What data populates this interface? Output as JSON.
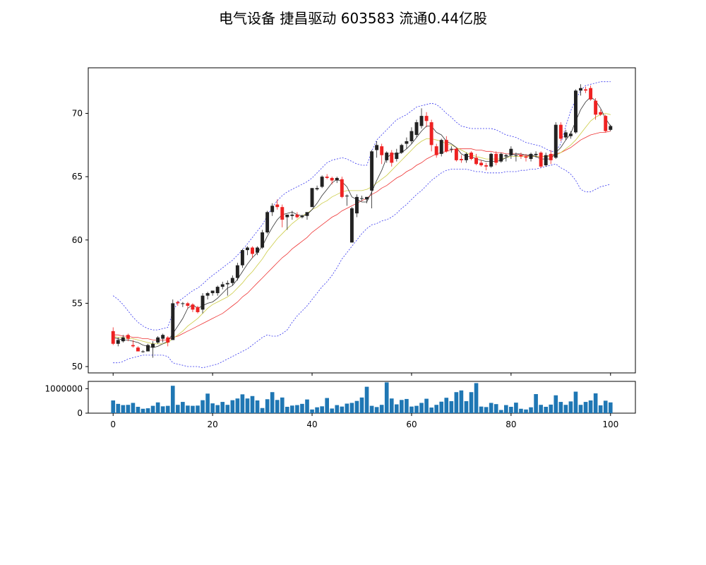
{
  "chart_data": {
    "type": "candlestick",
    "title": "电气设备 捷昌驱动 603583 流通0.44亿股",
    "price_panel": {
      "yticks": [
        50,
        55,
        60,
        65,
        70
      ],
      "ylim": [
        49.5,
        73.6
      ],
      "xlim": [
        -5,
        105
      ],
      "colors": {
        "up": "#222222",
        "down": "#ee2222",
        "ma_short": "#333333",
        "ma_mid": "#cccc44",
        "ma_long": "#ee3333",
        "boll": "#3333ee"
      },
      "candles": [
        [
          52.8,
          53.1,
          51.7,
          51.8
        ],
        [
          51.8,
          52.3,
          51.6,
          52.1
        ],
        [
          52.0,
          52.5,
          51.9,
          52.3
        ],
        [
          52.5,
          52.6,
          52.0,
          52.2
        ],
        [
          51.7,
          52.1,
          51.5,
          51.6
        ],
        [
          51.5,
          51.6,
          51.2,
          51.2
        ],
        [
          51.2,
          51.3,
          51.1,
          51.2
        ],
        [
          51.2,
          51.8,
          51.2,
          51.7
        ],
        [
          51.5,
          52.0,
          50.7,
          51.8
        ],
        [
          51.9,
          52.4,
          51.8,
          52.3
        ],
        [
          52.2,
          52.6,
          51.9,
          52.5
        ],
        [
          52.3,
          52.4,
          51.6,
          51.9
        ],
        [
          52.1,
          55.3,
          52.1,
          55.0
        ],
        [
          55.1,
          55.2,
          54.8,
          55.0
        ],
        [
          55.0,
          55.1,
          54.7,
          55.0
        ],
        [
          55.0,
          55.1,
          54.6,
          54.8
        ],
        [
          54.9,
          55.0,
          54.3,
          54.5
        ],
        [
          54.7,
          54.8,
          54.2,
          54.3
        ],
        [
          54.5,
          55.8,
          54.2,
          55.6
        ],
        [
          55.6,
          55.9,
          55.3,
          55.8
        ],
        [
          55.8,
          56.0,
          55.6,
          56.0
        ],
        [
          55.8,
          56.4,
          55.6,
          56.3
        ],
        [
          56.3,
          56.7,
          56.1,
          56.5
        ],
        [
          56.5,
          56.8,
          55.6,
          56.6
        ],
        [
          56.6,
          57.2,
          56.4,
          57.0
        ],
        [
          57.0,
          58.2,
          56.8,
          58.0
        ],
        [
          58.0,
          59.3,
          57.8,
          59.2
        ],
        [
          59.2,
          59.5,
          58.8,
          59.4
        ],
        [
          59.4,
          59.5,
          58.6,
          58.9
        ],
        [
          59.0,
          59.5,
          58.8,
          59.4
        ],
        [
          59.4,
          60.8,
          59.3,
          60.6
        ],
        [
          60.6,
          62.3,
          60.5,
          62.2
        ],
        [
          62.2,
          62.9,
          61.9,
          62.7
        ],
        [
          62.8,
          63.2,
          62.4,
          62.6
        ],
        [
          62.6,
          62.8,
          61.0,
          61.6
        ],
        [
          61.8,
          62.0,
          60.8,
          62.0
        ],
        [
          61.9,
          62.3,
          61.6,
          62.0
        ],
        [
          62.0,
          62.2,
          61.7,
          61.8
        ],
        [
          61.8,
          62.0,
          61.7,
          61.9
        ],
        [
          61.9,
          62.2,
          61.6,
          62.2
        ],
        [
          62.6,
          64.1,
          62.6,
          64.1
        ],
        [
          64.0,
          64.3,
          63.9,
          64.1
        ],
        [
          64.2,
          65.1,
          64.1,
          65.0
        ],
        [
          65.0,
          65.2,
          64.8,
          64.9
        ],
        [
          64.9,
          65.0,
          64.4,
          64.7
        ],
        [
          64.7,
          65.0,
          64.5,
          64.9
        ],
        [
          64.8,
          65.0,
          63.3,
          63.4
        ],
        [
          63.5,
          63.6,
          62.7,
          63.5
        ],
        [
          59.8,
          62.6,
          59.8,
          62.5
        ],
        [
          62.1,
          63.6,
          61.8,
          63.4
        ],
        [
          63.3,
          63.5,
          63.1,
          63.3
        ],
        [
          63.2,
          63.4,
          62.9,
          63.4
        ],
        [
          63.9,
          67.1,
          62.5,
          67.0
        ],
        [
          67.1,
          67.8,
          66.5,
          67.5
        ],
        [
          67.4,
          67.6,
          66.0,
          66.7
        ],
        [
          66.3,
          67.0,
          66.1,
          66.9
        ],
        [
          66.9,
          67.1,
          65.8,
          66.1
        ],
        [
          66.4,
          67.2,
          66.2,
          66.9
        ],
        [
          66.9,
          67.6,
          66.8,
          67.5
        ],
        [
          67.6,
          68.1,
          67.2,
          67.8
        ],
        [
          67.8,
          68.9,
          67.6,
          68.6
        ],
        [
          68.3,
          69.5,
          68.1,
          69.3
        ],
        [
          69.0,
          70.4,
          68.8,
          69.8
        ],
        [
          69.8,
          70.1,
          68.9,
          69.4
        ],
        [
          69.3,
          69.5,
          67.0,
          67.5
        ],
        [
          67.4,
          67.6,
          66.5,
          66.7
        ],
        [
          66.8,
          68.0,
          66.6,
          67.9
        ],
        [
          67.9,
          68.2,
          66.9,
          67.0
        ],
        [
          67.2,
          67.4,
          66.9,
          67.2
        ],
        [
          67.2,
          67.3,
          66.2,
          66.3
        ],
        [
          66.4,
          66.7,
          66.1,
          66.3
        ],
        [
          66.3,
          66.9,
          66.1,
          66.8
        ],
        [
          66.9,
          67.0,
          66.3,
          66.4
        ],
        [
          66.5,
          66.8,
          65.9,
          66.0
        ],
        [
          66.1,
          66.3,
          65.8,
          65.9
        ],
        [
          65.9,
          66.1,
          65.5,
          65.8
        ],
        [
          65.8,
          66.9,
          65.7,
          66.8
        ],
        [
          66.8,
          67.0,
          65.9,
          66.1
        ],
        [
          66.2,
          66.9,
          66.1,
          66.8
        ],
        [
          66.6,
          66.8,
          66.2,
          66.7
        ],
        [
          66.7,
          67.4,
          66.4,
          67.2
        ],
        [
          66.7,
          66.9,
          66.2,
          66.7
        ],
        [
          66.7,
          66.9,
          66.4,
          66.6
        ],
        [
          66.6,
          66.8,
          66.2,
          66.5
        ],
        [
          66.4,
          66.9,
          66.2,
          66.8
        ],
        [
          66.7,
          67.0,
          66.5,
          66.8
        ],
        [
          66.9,
          67.0,
          65.7,
          65.8
        ],
        [
          65.9,
          66.9,
          65.8,
          66.7
        ],
        [
          66.8,
          67.1,
          66.0,
          66.3
        ],
        [
          66.5,
          69.3,
          66.4,
          69.1
        ],
        [
          69.1,
          69.3,
          67.8,
          68.0
        ],
        [
          68.1,
          68.7,
          67.9,
          68.5
        ],
        [
          68.2,
          68.6,
          68.0,
          68.4
        ],
        [
          68.5,
          71.9,
          68.4,
          71.8
        ],
        [
          71.8,
          72.3,
          71.4,
          72.0
        ],
        [
          71.9,
          72.1,
          71.6,
          71.8
        ],
        [
          72.0,
          72.2,
          71.0,
          71.1
        ],
        [
          71.0,
          71.2,
          69.5,
          69.9
        ],
        [
          70.1,
          70.3,
          69.8,
          69.9
        ],
        [
          69.8,
          69.9,
          68.5,
          68.6
        ],
        [
          68.7,
          69.1,
          68.6,
          69.0
        ]
      ],
      "ma_short": [
        52.3,
        52.2,
        52.1,
        52.1,
        52.0,
        51.9,
        51.7,
        51.6,
        51.5,
        51.6,
        51.8,
        52.0,
        52.6,
        53.2,
        53.8,
        54.6,
        54.9,
        54.6,
        54.8,
        55.0,
        55.1,
        55.4,
        55.8,
        56.2,
        56.4,
        56.9,
        57.5,
        58.1,
        58.6,
        59.0,
        59.5,
        60.3,
        61.0,
        61.6,
        62.0,
        62.1,
        62.2,
        62.0,
        61.9,
        62.0,
        62.4,
        62.9,
        63.5,
        64.0,
        64.5,
        64.8,
        64.6,
        64.2,
        63.4,
        63.2,
        63.0,
        63.0,
        63.8,
        64.7,
        65.5,
        66.5,
        66.8,
        66.8,
        66.9,
        67.2,
        67.6,
        68.1,
        68.6,
        69.0,
        69.0,
        68.5,
        68.3,
        67.8,
        67.6,
        67.3,
        66.8,
        66.6,
        66.6,
        66.4,
        66.3,
        66.2,
        66.2,
        66.2,
        66.3,
        66.5,
        66.7,
        66.8,
        66.8,
        66.7,
        66.7,
        66.6,
        66.4,
        66.4,
        66.4,
        66.9,
        67.3,
        67.9,
        68.4,
        69.4,
        70.3,
        70.9,
        71.3,
        71.0,
        70.4,
        69.6,
        69.0
      ],
      "ma_mid": [
        52.4,
        52.3,
        52.3,
        52.2,
        52.2,
        52.1,
        52.0,
        51.9,
        51.8,
        51.8,
        51.8,
        51.9,
        52.2,
        52.5,
        52.8,
        53.2,
        53.5,
        53.8,
        54.2,
        54.6,
        54.9,
        55.1,
        55.3,
        55.5,
        55.8,
        56.2,
        56.6,
        57.1,
        57.5,
        58.0,
        58.5,
        59.1,
        59.6,
        60.1,
        60.5,
        60.9,
        61.3,
        61.6,
        61.9,
        62.1,
        62.4,
        62.6,
        62.9,
        63.1,
        63.4,
        63.6,
        63.8,
        63.9,
        63.9,
        63.9,
        63.9,
        64.0,
        64.2,
        64.5,
        64.8,
        65.1,
        65.5,
        65.9,
        66.3,
        66.7,
        67.1,
        67.5,
        67.8,
        68.0,
        68.0,
        67.9,
        67.8,
        67.6,
        67.5,
        67.3,
        67.1,
        66.9,
        66.7,
        66.6,
        66.5,
        66.4,
        66.4,
        66.4,
        66.4,
        66.5,
        66.6,
        66.6,
        66.6,
        66.6,
        66.6,
        66.6,
        66.6,
        66.6,
        66.6,
        66.7,
        66.9,
        67.2,
        67.5,
        67.9,
        68.4,
        68.9,
        69.4,
        69.7,
        69.9,
        70.0,
        69.9
      ],
      "ma_long": [
        52.5,
        52.5,
        52.4,
        52.4,
        52.3,
        52.3,
        52.2,
        52.2,
        52.1,
        52.1,
        52.1,
        52.1,
        52.3,
        52.4,
        52.6,
        52.8,
        53.0,
        53.2,
        53.4,
        53.6,
        53.8,
        54.0,
        54.2,
        54.5,
        54.8,
        55.1,
        55.5,
        55.8,
        56.2,
        56.6,
        57.0,
        57.4,
        57.8,
        58.2,
        58.6,
        58.9,
        59.3,
        59.6,
        59.9,
        60.2,
        60.6,
        60.9,
        61.2,
        61.5,
        61.8,
        62.0,
        62.3,
        62.5,
        62.7,
        62.9,
        63.1,
        63.3,
        63.6,
        63.8,
        64.1,
        64.3,
        64.6,
        64.9,
        65.1,
        65.4,
        65.6,
        65.9,
        66.1,
        66.4,
        66.6,
        66.8,
        66.9,
        67.0,
        67.1,
        67.2,
        67.2,
        67.2,
        67.2,
        67.1,
        67.1,
        67.0,
        67.0,
        66.9,
        66.9,
        66.8,
        66.8,
        66.8,
        66.7,
        66.7,
        66.6,
        66.6,
        66.6,
        66.6,
        66.7,
        66.8,
        66.9,
        67.1,
        67.3,
        67.6,
        67.9,
        68.1,
        68.3,
        68.4,
        68.5,
        68.5,
        68.6
      ],
      "boll_upper": [
        55.6,
        55.3,
        54.9,
        54.4,
        53.9,
        53.5,
        53.2,
        53.0,
        52.9,
        52.9,
        53.0,
        53.1,
        54.3,
        55.1,
        55.4,
        55.7,
        56.0,
        56.2,
        56.5,
        56.9,
        57.2,
        57.5,
        57.8,
        58.1,
        58.4,
        58.8,
        59.2,
        59.7,
        60.2,
        60.7,
        61.2,
        61.9,
        62.6,
        63.1,
        63.5,
        63.8,
        64.0,
        64.2,
        64.4,
        64.6,
        64.9,
        65.3,
        65.7,
        66.1,
        66.3,
        66.4,
        66.5,
        66.4,
        66.2,
        66.0,
        65.9,
        65.9,
        67.0,
        67.9,
        68.3,
        68.7,
        69.1,
        69.5,
        69.7,
        69.9,
        70.2,
        70.5,
        70.6,
        70.7,
        70.8,
        70.7,
        70.4,
        70.0,
        69.7,
        69.3,
        69.0,
        68.9,
        68.8,
        68.8,
        68.8,
        68.8,
        68.8,
        68.7,
        68.5,
        68.3,
        68.2,
        68.1,
        67.9,
        67.7,
        67.6,
        67.5,
        67.4,
        67.2,
        67.0,
        67.0,
        67.6,
        69.0,
        70.2,
        71.1,
        71.8,
        72.2,
        72.3,
        72.4,
        72.5,
        72.5,
        72.5
      ],
      "boll_lower": [
        50.3,
        50.3,
        50.4,
        50.6,
        50.7,
        50.8,
        50.9,
        50.9,
        50.9,
        50.9,
        50.9,
        50.8,
        50.3,
        50.2,
        50.1,
        50.0,
        50.0,
        50.0,
        49.9,
        50.0,
        50.1,
        50.2,
        50.4,
        50.6,
        50.8,
        51.0,
        51.2,
        51.4,
        51.7,
        52.0,
        52.3,
        52.5,
        52.4,
        52.4,
        52.6,
        52.9,
        53.5,
        54.0,
        54.4,
        54.8,
        55.3,
        55.8,
        56.3,
        56.7,
        57.2,
        57.8,
        58.5,
        59.0,
        59.5,
        60.0,
        60.5,
        60.9,
        61.2,
        61.3,
        61.5,
        61.6,
        61.8,
        62.1,
        62.5,
        62.8,
        63.2,
        63.6,
        63.9,
        64.3,
        64.7,
        65.0,
        65.3,
        65.5,
        65.6,
        65.6,
        65.6,
        65.6,
        65.5,
        65.4,
        65.4,
        65.3,
        65.3,
        65.3,
        65.3,
        65.4,
        65.4,
        65.4,
        65.5,
        65.5,
        65.6,
        65.6,
        65.7,
        65.8,
        65.9,
        66.0,
        65.7,
        65.5,
        65.2,
        64.7,
        64.0,
        63.8,
        63.8,
        64.0,
        64.2,
        64.3,
        64.4
      ]
    },
    "volume_panel": {
      "color": "#1f77b4",
      "yticks": [
        0,
        1000000
      ],
      "ytick_labels": [
        "0",
        "1000000"
      ],
      "ylim": [
        0,
        1300000
      ],
      "xticks": [
        0,
        20,
        40,
        60,
        80,
        100
      ],
      "xtick_labels": [
        "0",
        "20",
        "40",
        "60",
        "80",
        "100"
      ],
      "values": [
        520000,
        380000,
        330000,
        340000,
        420000,
        260000,
        180000,
        200000,
        300000,
        440000,
        280000,
        300000,
        1120000,
        340000,
        460000,
        310000,
        300000,
        310000,
        530000,
        800000,
        400000,
        330000,
        460000,
        340000,
        530000,
        600000,
        770000,
        600000,
        700000,
        520000,
        210000,
        570000,
        860000,
        540000,
        640000,
        260000,
        310000,
        330000,
        380000,
        560000,
        150000,
        240000,
        280000,
        620000,
        190000,
        330000,
        270000,
        390000,
        420000,
        500000,
        640000,
        1080000,
        300000,
        250000,
        340000,
        1260000,
        600000,
        360000,
        540000,
        580000,
        270000,
        300000,
        420000,
        590000,
        230000,
        340000,
        470000,
        630000,
        490000,
        860000,
        930000,
        490000,
        860000,
        1230000,
        270000,
        250000,
        420000,
        370000,
        130000,
        330000,
        260000,
        430000,
        180000,
        150000,
        240000,
        780000,
        340000,
        260000,
        350000,
        730000,
        460000,
        340000,
        480000,
        880000,
        340000,
        460000,
        520000,
        810000,
        320000,
        510000,
        440000
      ]
    }
  }
}
